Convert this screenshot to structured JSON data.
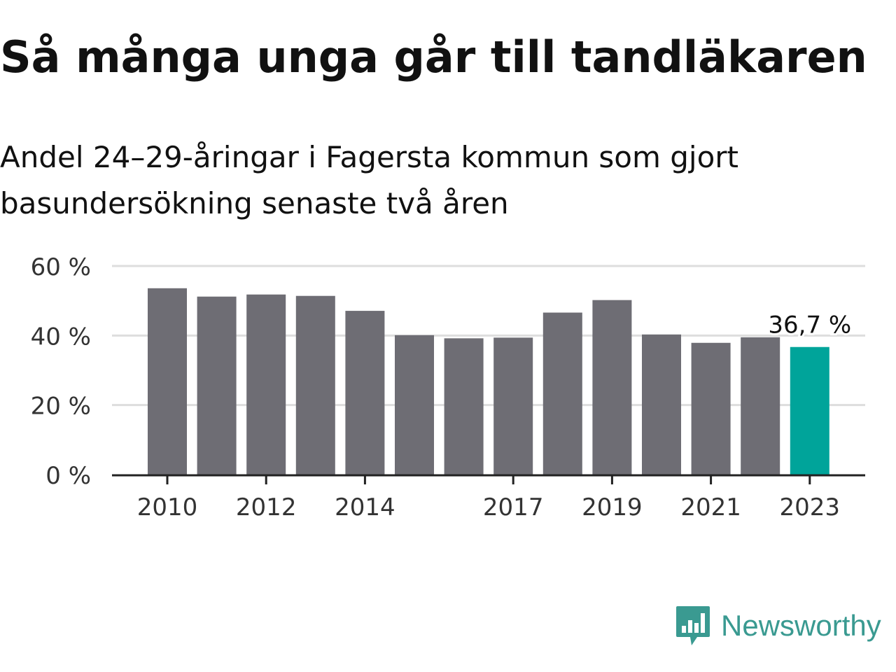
{
  "title": "Så många unga går till tandläkaren",
  "subtitle": "Andel 24–29-åringar i Fagersta kommun som gjort basundersökning senaste två åren",
  "brand": {
    "name": "Newsworthy",
    "icon": "bar-chart-speech-bubble-icon",
    "color": "#3a9a91"
  },
  "chart_data": {
    "type": "bar",
    "categories": [
      "2010",
      "2011",
      "2012",
      "2013",
      "2014",
      "2015",
      "2016",
      "2017",
      "2018",
      "2019",
      "2020",
      "2021",
      "2022",
      "2023"
    ],
    "values": [
      53.6,
      51.2,
      51.8,
      51.4,
      47.1,
      40.1,
      39.2,
      39.4,
      46.6,
      50.2,
      40.3,
      37.9,
      39.5,
      36.7
    ],
    "tick_labels": [
      "2010",
      "2012",
      "2014",
      "2017",
      "2019",
      "2021",
      "2023"
    ],
    "y_ticks": [
      0,
      20,
      40,
      60
    ],
    "y_tick_labels": [
      "0 %",
      "20 %",
      "40 %",
      "60 %"
    ],
    "ylim": [
      0,
      60
    ],
    "grid": true,
    "highlight_index": 13,
    "highlight_label": "36,7 %",
    "colors": {
      "bar": "#6e6d74",
      "highlight": "#00a49a",
      "grid": "#dddddd",
      "axis": "#222222"
    }
  }
}
